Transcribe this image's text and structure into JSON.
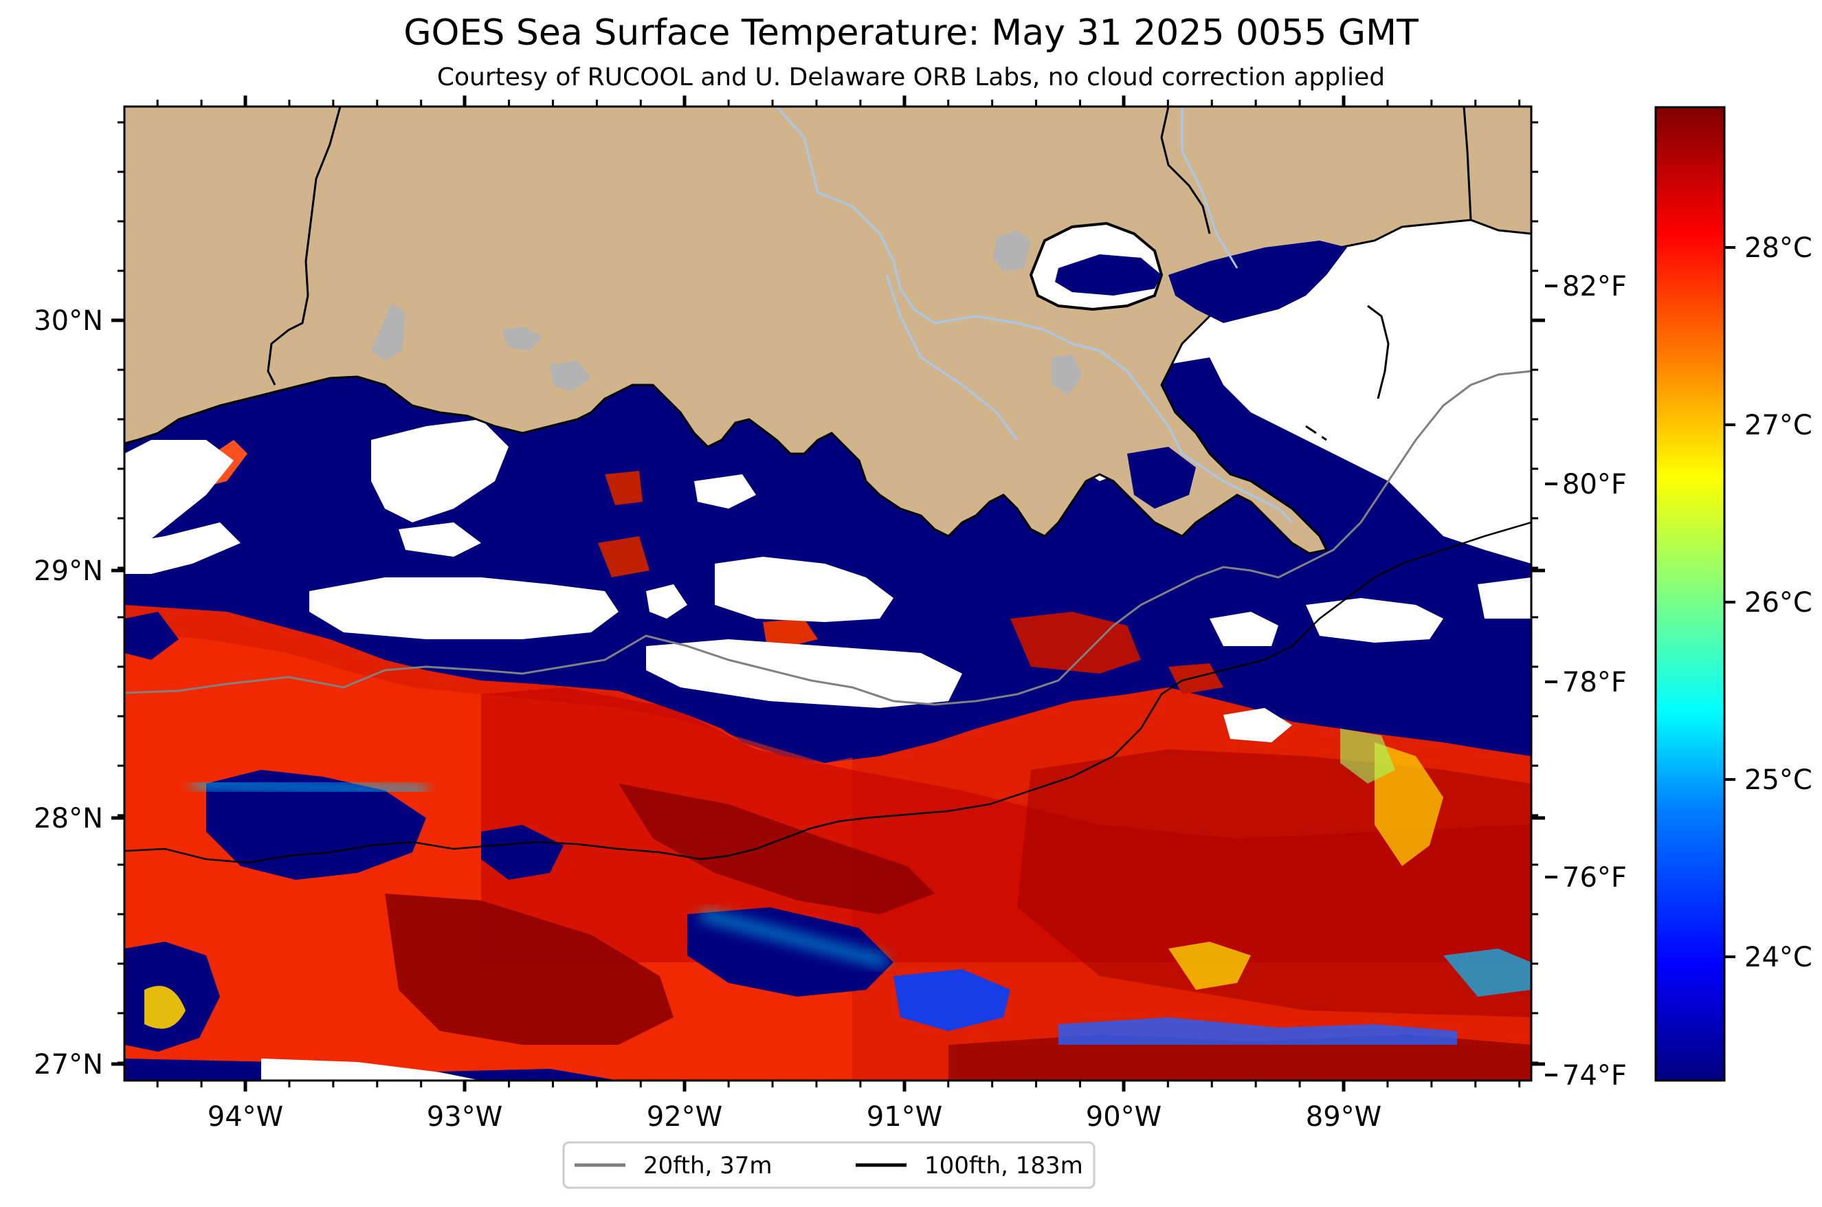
{
  "title": "GOES Sea Surface Temperature: May 31 2025 0055 GMT",
  "subtitle": "Courtesy of RUCOOL and U. Delaware ORB Labs, no cloud correction applied",
  "map": {
    "lon_labels": [
      "94°W",
      "93°W",
      "92°W",
      "91°W",
      "90°W",
      "89°W"
    ],
    "lat_labels": [
      "30°N",
      "29°N",
      "28°N",
      "27°N"
    ],
    "colors": {
      "land": "#d2b48c",
      "cloud": "#ffffff",
      "lake": "#b3b3b3",
      "river": "#a6c8ea",
      "coast": "#000000",
      "isobath_20": "#808080",
      "isobath_100": "#000000"
    }
  },
  "colorbar": {
    "celsius_labels": [
      "28°C",
      "27°C",
      "26°C",
      "25°C",
      "24°C"
    ],
    "fahrenheit_labels": [
      "82°F",
      "80°F",
      "78°F",
      "76°F",
      "74°F"
    ],
    "colormap": "jet",
    "stops": [
      "#00007f",
      "#0000ff",
      "#0080ff",
      "#00ffff",
      "#80ff80",
      "#ffff00",
      "#ff8000",
      "#ff0000",
      "#7f0000"
    ]
  },
  "legend": {
    "items": [
      {
        "label": "20fth, 37m",
        "color": "#808080"
      },
      {
        "label": "100fth, 183m",
        "color": "#000000"
      }
    ]
  }
}
